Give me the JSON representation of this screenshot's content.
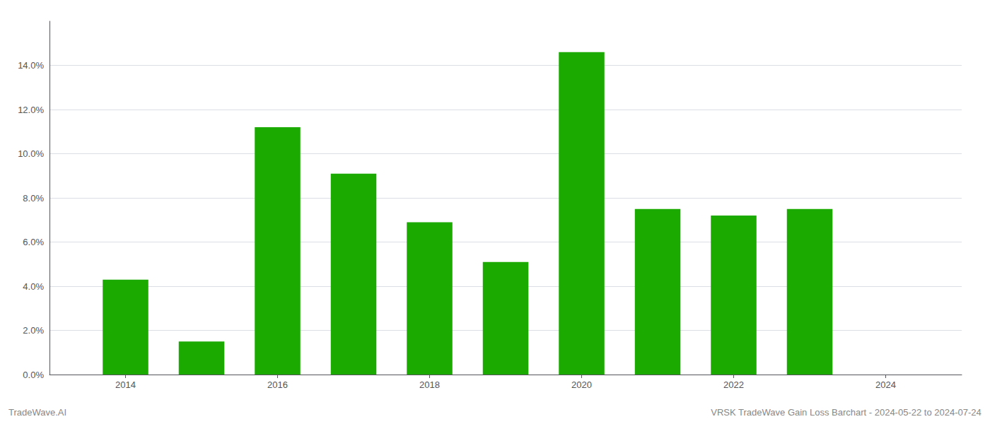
{
  "chart_data": {
    "type": "bar",
    "x": [
      2014,
      2015,
      2016,
      2017,
      2018,
      2019,
      2020,
      2021,
      2022,
      2023
    ],
    "values": [
      0.043,
      0.015,
      0.112,
      0.091,
      0.069,
      0.051,
      0.146,
      0.075,
      0.072,
      0.075
    ],
    "color": "#1aaa00",
    "xlim": [
      2013.0,
      2025.0
    ],
    "xticks": [
      2014,
      2016,
      2018,
      2020,
      2022,
      2024
    ],
    "ylim": [
      0,
      0.16
    ],
    "yticks": [
      {
        "value": 0.0,
        "label": "0.0%"
      },
      {
        "value": 0.02,
        "label": "2.0%"
      },
      {
        "value": 0.04,
        "label": "4.0%"
      },
      {
        "value": 0.06,
        "label": "6.0%"
      },
      {
        "value": 0.08,
        "label": "8.0%"
      },
      {
        "value": 0.1,
        "label": "10.0%"
      },
      {
        "value": 0.12,
        "label": "12.0%"
      },
      {
        "value": 0.14,
        "label": "14.0%"
      }
    ],
    "grid": true,
    "annotations": [
      "TradeWave.AI",
      "VRSK TradeWave Gain Loss Barchart - 2024-05-22 to 2024-07-24"
    ]
  }
}
